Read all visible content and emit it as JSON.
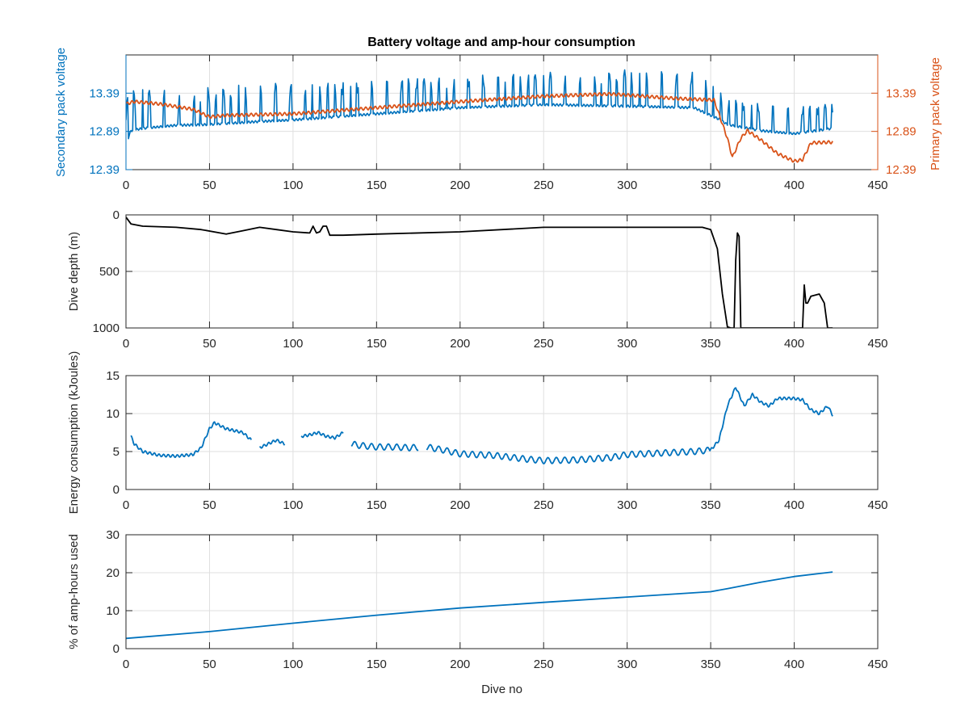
{
  "figure_title": "Battery voltage and amp-hour consumption",
  "colors": {
    "blue": "#0072BD",
    "orange": "#D95319",
    "black": "#000000"
  },
  "chart_data": [
    {
      "type": "line",
      "title": "Battery voltage and amp-hour consumption",
      "xlabel": "",
      "ylabel": "Secondary pack voltage",
      "ylabel_right": "Primary pack voltage",
      "xlim": [
        0,
        450
      ],
      "xticks": [
        0,
        50,
        100,
        150,
        200,
        250,
        300,
        350,
        400,
        450
      ],
      "ylim": [
        12.39,
        13.89
      ],
      "yticks": [
        12.39,
        12.89,
        13.39
      ],
      "yticks_right": [
        12.39,
        12.89,
        13.39
      ],
      "grid": true,
      "series": [
        {
          "axis": "left",
          "color": "#0072BD",
          "style": "spiky",
          "x": [
            0,
            3,
            10,
            30,
            50,
            80,
            100,
            150,
            200,
            250,
            300,
            340,
            350,
            355,
            360,
            380,
            400,
            423
          ],
          "base": [
            12.72,
            12.9,
            12.93,
            12.97,
            12.98,
            13.02,
            13.04,
            13.12,
            13.2,
            13.24,
            13.22,
            13.2,
            13.1,
            13.05,
            12.98,
            12.9,
            12.86,
            12.93
          ],
          "peak": [
            13.3,
            13.4,
            13.45,
            13.4,
            13.45,
            13.5,
            13.52,
            13.55,
            13.6,
            13.65,
            13.68,
            13.65,
            13.6,
            13.45,
            13.3,
            13.25,
            13.2,
            13.25
          ]
        },
        {
          "axis": "right",
          "color": "#D95319",
          "style": "smooth",
          "x": [
            0,
            5,
            20,
            40,
            50,
            60,
            100,
            150,
            200,
            250,
            290,
            330,
            352,
            360,
            363,
            368,
            372,
            380,
            390,
            400,
            405,
            410,
            423
          ],
          "y": [
            13.25,
            13.28,
            13.25,
            13.18,
            13.08,
            13.1,
            13.12,
            13.2,
            13.28,
            13.35,
            13.38,
            13.32,
            13.3,
            12.8,
            12.55,
            12.8,
            12.9,
            12.78,
            12.6,
            12.5,
            12.52,
            12.74,
            12.75
          ]
        }
      ]
    },
    {
      "type": "line",
      "xlabel": "",
      "ylabel": "Dive depth (m)",
      "xlim": [
        0,
        450
      ],
      "xticks": [
        0,
        50,
        100,
        150,
        200,
        250,
        300,
        350,
        400,
        450
      ],
      "ylim": [
        0,
        1000
      ],
      "yticks": [
        0,
        500,
        1000
      ],
      "y_reversed": true,
      "grid": true,
      "series": [
        {
          "color": "#000000",
          "x": [
            0,
            3,
            10,
            30,
            45,
            60,
            70,
            80,
            90,
            100,
            110,
            112,
            114,
            116,
            118,
            120,
            122,
            130,
            150,
            200,
            250,
            300,
            345,
            350,
            354,
            357,
            360,
            362,
            364,
            365,
            366,
            367,
            368,
            370,
            380,
            400,
            405,
            406,
            407,
            408,
            410,
            415,
            418,
            420,
            423
          ],
          "y": [
            20,
            80,
            100,
            110,
            130,
            170,
            140,
            110,
            130,
            150,
            160,
            100,
            160,
            150,
            100,
            100,
            180,
            180,
            170,
            150,
            110,
            110,
            110,
            130,
            300,
            700,
            990,
            1000,
            1000,
            400,
            160,
            190,
            1000,
            1000,
            1000,
            1000,
            1000,
            620,
            780,
            780,
            720,
            700,
            780,
            1000,
            1000
          ]
        }
      ]
    },
    {
      "type": "line",
      "xlabel": "",
      "ylabel": "Energy consumption (kJoules)",
      "xlim": [
        0,
        450
      ],
      "xticks": [
        0,
        50,
        100,
        150,
        200,
        250,
        300,
        350,
        400,
        450
      ],
      "ylim": [
        0,
        15
      ],
      "yticks": [
        0,
        5,
        10,
        15
      ],
      "grid": true,
      "series": [
        {
          "color": "#0072BD",
          "x": [
            3,
            5,
            10,
            20,
            30,
            40,
            45,
            50,
            53,
            60,
            70,
            75,
            80,
            85,
            90,
            95,
            100,
            105,
            110,
            115,
            120,
            125,
            130,
            135,
            140,
            150,
            160,
            170,
            180,
            190,
            200,
            220,
            240,
            250,
            270,
            290,
            300,
            320,
            340,
            350,
            355,
            360,
            365,
            370,
            375,
            380,
            385,
            390,
            400,
            405,
            410,
            415,
            420,
            423
          ],
          "y": [
            7.0,
            6.0,
            5.0,
            4.5,
            4.4,
            4.6,
            5.5,
            8.0,
            8.8,
            8.0,
            7.5,
            6.5,
            5.5,
            6.0,
            6.5,
            6.0,
            6.8,
            7.0,
            7.2,
            7.5,
            7.0,
            6.8,
            7.5,
            6.0,
            5.8,
            5.6,
            5.6,
            5.5,
            5.6,
            5.2,
            4.7,
            4.5,
            4.0,
            3.8,
            3.9,
            4.2,
            4.6,
            4.8,
            5.0,
            5.2,
            6.5,
            11.0,
            13.5,
            11.0,
            12.5,
            11.5,
            11.0,
            12.0,
            12.0,
            11.8,
            10.5,
            10.0,
            11.0,
            9.8
          ],
          "gaps": [
            [
              75,
              80
            ],
            [
              95,
              105
            ],
            [
              130,
              135
            ],
            [
              175,
              180
            ]
          ],
          "wiggle": 0.5
        }
      ]
    },
    {
      "type": "line",
      "xlabel": "Dive no",
      "ylabel": "% of amp-hours used",
      "xlim": [
        0,
        450
      ],
      "xticks": [
        0,
        50,
        100,
        150,
        200,
        250,
        300,
        350,
        400,
        450
      ],
      "ylim": [
        0,
        30
      ],
      "yticks": [
        0,
        10,
        20,
        30
      ],
      "grid": true,
      "series": [
        {
          "color": "#0072BD",
          "x": [
            0,
            50,
            100,
            150,
            200,
            250,
            300,
            350,
            360,
            380,
            400,
            423
          ],
          "y": [
            2.7,
            4.5,
            6.7,
            8.8,
            10.7,
            12.2,
            13.6,
            15.0,
            15.8,
            17.5,
            19.0,
            20.2
          ]
        }
      ]
    }
  ]
}
